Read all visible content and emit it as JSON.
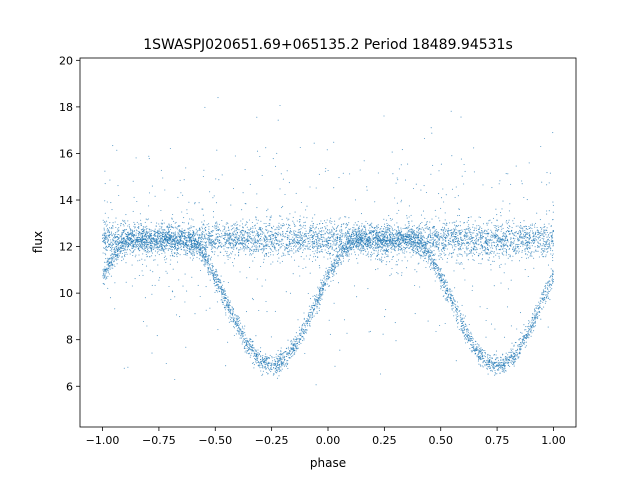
{
  "chart_data": {
    "type": "scatter",
    "title": "1SWASPJ020651.69+065135.2 Period 18489.94531s",
    "xlabel": "phase",
    "ylabel": "flux",
    "xlim": [
      -1.1,
      1.1
    ],
    "ylim": [
      4.25,
      20.1
    ],
    "xticks": [
      -1.0,
      -0.75,
      -0.5,
      -0.25,
      0.0,
      0.25,
      0.5,
      0.75,
      1.0
    ],
    "xtick_labels": [
      "−1.00",
      "−0.75",
      "−0.50",
      "−0.25",
      "0.00",
      "0.25",
      "0.50",
      "0.75",
      "1.00"
    ],
    "yticks": [
      6,
      8,
      10,
      12,
      14,
      16,
      18,
      20
    ],
    "ytick_labels": [
      "6",
      "8",
      "10",
      "12",
      "14",
      "16",
      "18",
      "20"
    ],
    "grid": false,
    "legend": "none",
    "point_color": "#1f77b4",
    "series": [
      {
        "x_range": [
          -1.0,
          1.0
        ],
        "baseline_flux": 12.3,
        "eclipse_centers": [
          -0.25,
          0.75
        ],
        "eclipse_min_flux": 6.9,
        "note_shape": "flat baseline with two deep V-shaped eclipses (phase-folded, period 1.0)"
      }
    ]
  }
}
